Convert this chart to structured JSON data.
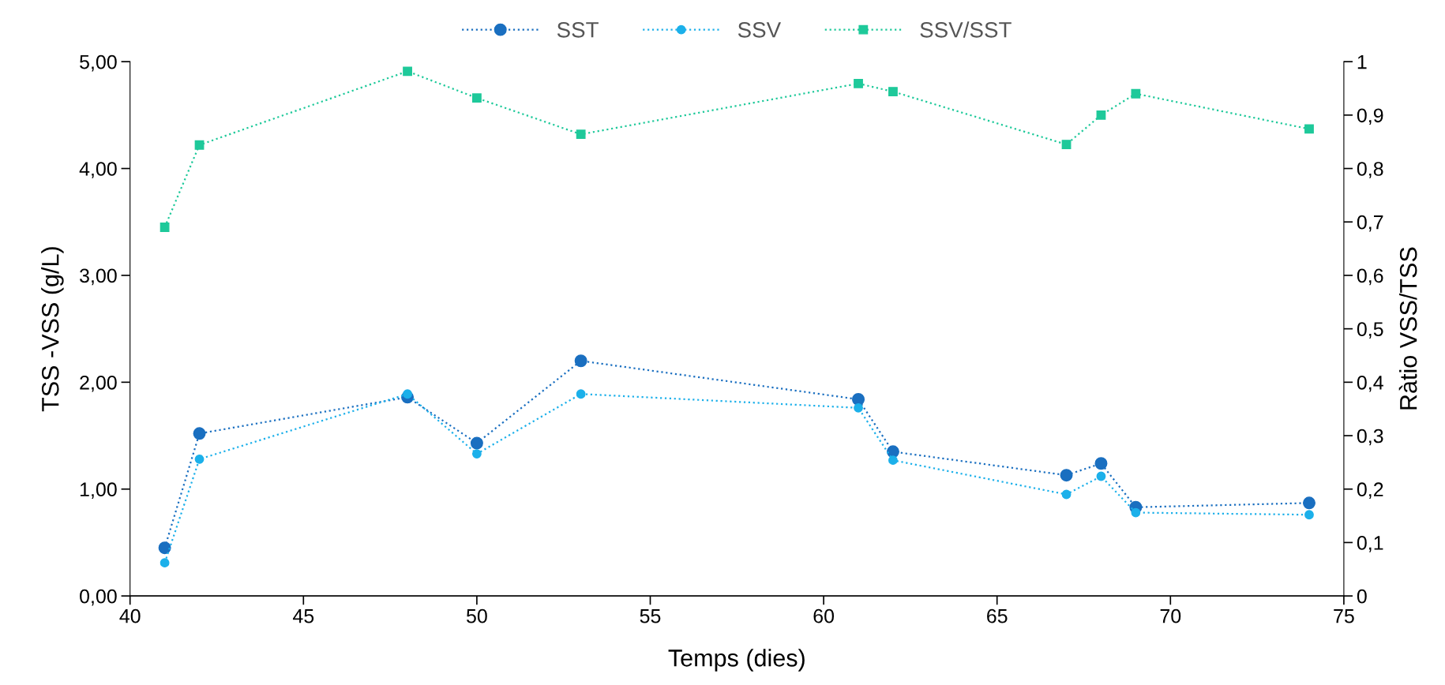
{
  "chart_data": {
    "type": "line",
    "xlabel": "Temps (dies)",
    "ylabel": "TSS -VSS (g/L)",
    "y2label": "Ràtio VSS/TSS",
    "x": [
      41,
      42,
      48,
      50,
      53,
      61,
      62,
      67,
      68,
      69,
      74
    ],
    "series": [
      {
        "name": "SST",
        "color": "#1a6fc0",
        "marker": "circle",
        "values": [
          0.45,
          1.52,
          1.86,
          1.43,
          2.2,
          1.84,
          1.35,
          1.13,
          1.24,
          0.83,
          0.87
        ]
      },
      {
        "name": "SSV",
        "color": "#1cb0ea",
        "marker": "circle",
        "values": [
          0.31,
          1.28,
          1.89,
          1.33,
          1.89,
          1.76,
          1.27,
          0.95,
          1.12,
          0.78,
          0.76
        ]
      },
      {
        "name": "SSV/SST",
        "color": "#1ec99a",
        "marker": "square",
        "axis": "y2",
        "values": [
          0.69,
          0.844,
          0.982,
          0.932,
          0.864,
          0.959,
          0.944,
          0.845,
          0.9,
          0.94,
          0.874
        ]
      }
    ],
    "xlim": [
      40,
      75
    ],
    "xticks": [
      40,
      45,
      50,
      55,
      60,
      65,
      70,
      75
    ],
    "ylim": [
      0,
      5
    ],
    "yticks": [
      {
        "value": 0,
        "label": "0,00"
      },
      {
        "value": 1,
        "label": "1,00"
      },
      {
        "value": 2,
        "label": "2,00"
      },
      {
        "value": 3,
        "label": "3,00"
      },
      {
        "value": 4,
        "label": "4,00"
      },
      {
        "value": 5,
        "label": "5,00"
      }
    ],
    "y2lim": [
      0,
      1
    ],
    "y2ticks": [
      0,
      {
        "value": 0.1,
        "label": "0,1"
      },
      {
        "value": 0.2,
        "label": "0,2"
      },
      {
        "value": 0.3,
        "label": "0,3"
      },
      {
        "value": 0.4,
        "label": "0,4"
      },
      {
        "value": 0.5,
        "label": "0,5"
      },
      {
        "value": 0.6,
        "label": "0,6"
      },
      {
        "value": 0.7,
        "label": "0,7"
      },
      {
        "value": 0.8,
        "label": "0,8"
      },
      {
        "value": 0.9,
        "label": "0,9"
      },
      1
    ],
    "grid": false,
    "legend": "top",
    "line_style": "dotted"
  }
}
